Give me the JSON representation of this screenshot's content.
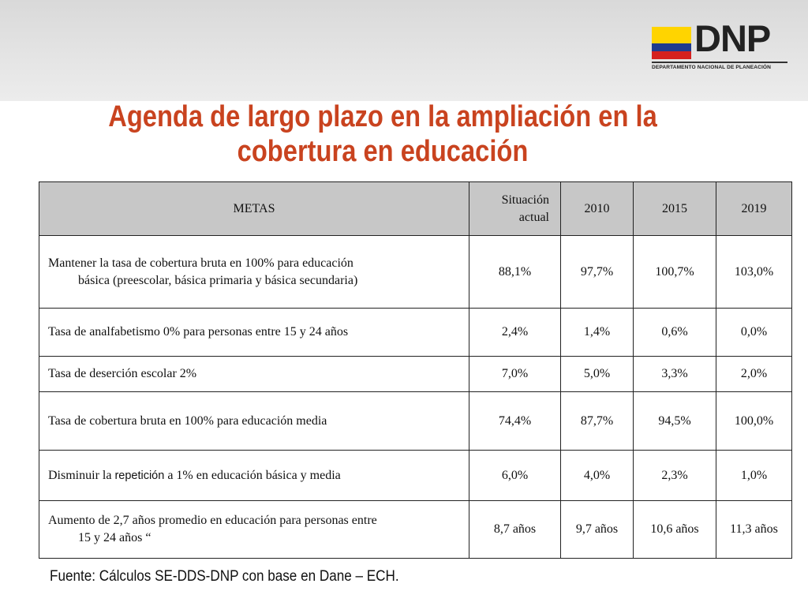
{
  "logo": {
    "text": "DNP",
    "subtitle": "DEPARTAMENTO NACIONAL DE PLANEACIÓN",
    "colors": {
      "yellow": "#ffd400",
      "blue": "#1f3c8f",
      "red": "#d5201f"
    }
  },
  "title": {
    "line1": "Agenda de largo plazo en la ampliación en la",
    "line2": "cobertura en educación",
    "color": "#c9431f"
  },
  "table": {
    "headers": {
      "metas": "METAS",
      "situacion_line1": "Situación",
      "situacion_line2": "actual",
      "y2010": "2010",
      "y2015": "2015",
      "y2019": "2019"
    },
    "rows": [
      {
        "meta_line1": "Mantener la tasa de cobertura bruta en 100% para educación",
        "meta_line2": "básica (preescolar, básica primaria y básica secundaria)",
        "actual": "88,1%",
        "y2010": "97,7%",
        "y2015": "100,7%",
        "y2019": "103,0%"
      },
      {
        "meta": "Tasa de analfabetismo 0% para personas entre 15 y 24 años",
        "actual": "2,4%",
        "y2010": "1,4%",
        "y2015": "0,6%",
        "y2019": "0,0%"
      },
      {
        "meta": "Tasa de deserción escolar 2%",
        "actual": "7,0%",
        "y2010": "5,0%",
        "y2015": "3,3%",
        "y2019": "2,0%"
      },
      {
        "meta": "Tasa de cobertura bruta en 100% para educación media",
        "actual": "74,4%",
        "y2010": "87,7%",
        "y2015": "94,5%",
        "y2019": "100,0%"
      },
      {
        "meta_a": "Disminuir la ",
        "meta_b": "repetición",
        "meta_c": " a 1% en educación básica y media",
        "actual": "6,0%",
        "y2010": "4,0%",
        "y2015": "2,3%",
        "y2019": "1,0%"
      },
      {
        "meta_line1": "Aumento de 2,7 años promedio en educación para personas entre",
        "meta_line2": "15 y 24 años “",
        "actual": "8,7 años",
        "y2010": "9,7 años",
        "y2015": "10,6 años",
        "y2019": "11,3 años"
      }
    ]
  },
  "source": "Fuente: Cálculos SE-DDS-DNP con base en Dane – ECH."
}
